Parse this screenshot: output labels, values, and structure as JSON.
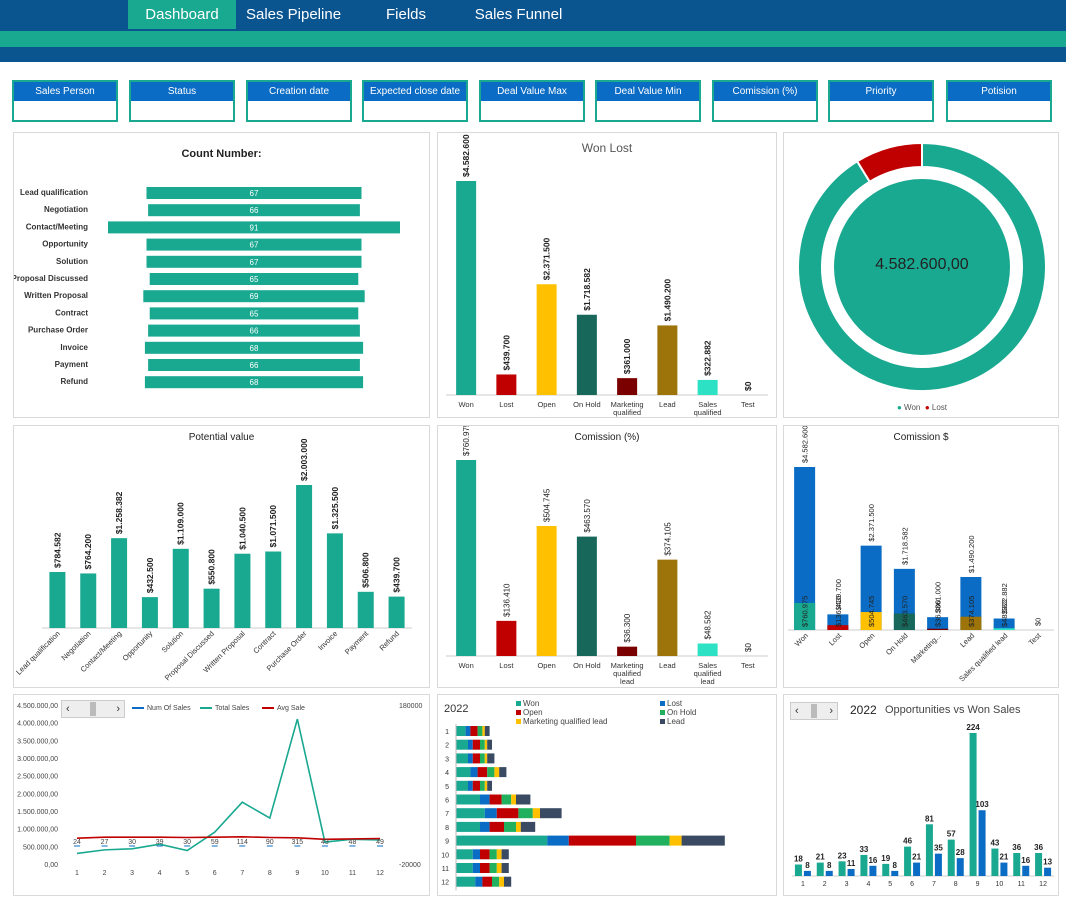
{
  "nav": {
    "items": [
      {
        "label": "Dashboard",
        "active": true
      },
      {
        "label": "Sales Pipeline",
        "active": false
      },
      {
        "label": "Fields",
        "active": false
      },
      {
        "label": "Sales Funnel",
        "active": false
      }
    ]
  },
  "filters": [
    "Sales Person",
    "Status",
    "Creation date",
    "Expected close date",
    "Deal Value Max",
    "Deal Value Min",
    "Comission (%)",
    "Priority",
    "Potision"
  ],
  "colors": {
    "navy": "#0a5490",
    "teal": "#19a890",
    "blue": "#0a6cc4",
    "red": "#c00000",
    "yellow": "#ffc000",
    "darkgreen": "#17675a",
    "maroon": "#7a0000",
    "olive": "#9c7409",
    "aqua": "#2de2c4",
    "green": "#21b05e",
    "slate": "#3a4a63"
  },
  "count_chart": {
    "title": "Count Number:",
    "chart_data": {
      "type": "bar",
      "categories": [
        "Lead qualification",
        "Negotiation",
        "Contact/Meeting",
        "Opportunity",
        "Solution",
        "Proposal Discussed",
        "Written Proposal",
        "Contract",
        "Purchase Order",
        "Invoice",
        "Payment",
        "Refund"
      ],
      "values": [
        67,
        66,
        91,
        67,
        67,
        65,
        69,
        65,
        66,
        68,
        66,
        68
      ]
    }
  },
  "won_lost_chart": {
    "title": "Won Lost",
    "chart_data": {
      "type": "bar",
      "categories": [
        "Won",
        "Lost",
        "Open",
        "On Hold",
        "Marketing qualified lead",
        "Lead",
        "Sales qualified lead",
        "Test"
      ],
      "values": [
        4582600,
        439700,
        2371500,
        1718582,
        361000,
        1490200,
        322882,
        0
      ],
      "labels": [
        "$4.582.600",
        "$439.700",
        "$2.371.500",
        "$1.718.582",
        "$361.000",
        "$1.490.200",
        "$322.882",
        "$0"
      ],
      "colors": [
        "#19a890",
        "#c00000",
        "#ffc000",
        "#17675a",
        "#7a0000",
        "#9c7409",
        "#2de2c4",
        "#19a890"
      ]
    }
  },
  "donut_chart": {
    "center_label": "4.582.600,00",
    "chart_data": {
      "type": "pie",
      "categories": [
        "Won",
        "Lost"
      ],
      "values": [
        4582600,
        439700
      ],
      "colors": [
        "#19a890",
        "#c00000"
      ]
    },
    "legend": [
      "Won",
      "Lost"
    ]
  },
  "potential_chart": {
    "title": "Potential value",
    "chart_data": {
      "type": "bar",
      "categories": [
        "Lead qualification",
        "Negotiation",
        "Contact/Meeting",
        "Opportunity",
        "Solution",
        "Proposal Discussed",
        "Written Proposal",
        "Contract",
        "Purchase Order",
        "Invoice",
        "Payment",
        "Refund"
      ],
      "values": [
        784582,
        764200,
        1258382,
        432500,
        1109000,
        550800,
        1040500,
        1071500,
        2003000,
        1325500,
        506800,
        439700
      ],
      "labels": [
        "$784.582",
        "$764.200",
        "$1.258.382",
        "$432.500",
        "$1.109.000",
        "$550.800",
        "$1.040.500",
        "$1.071.500",
        "$2.003.000",
        "$1.325.500",
        "$506.800",
        "$439.700"
      ]
    }
  },
  "comission_pct_chart": {
    "title": "Comission (%)",
    "chart_data": {
      "type": "bar",
      "categories": [
        "Won",
        "Lost",
        "Open",
        "On Hold",
        "Marketing qualified lead",
        "Lead",
        "Sales qualified lead",
        "Test"
      ],
      "values": [
        760975,
        136410,
        504745,
        463570,
        36300,
        374105,
        48582,
        0
      ],
      "labels": [
        "$760.975",
        "$136.410",
        "$504.745",
        "$463.570",
        "$36.300",
        "$374.105",
        "$48.582",
        "$0"
      ],
      "colors": [
        "#19a890",
        "#c00000",
        "#ffc000",
        "#17675a",
        "#7a0000",
        "#9c7409",
        "#2de2c4",
        "#19a890"
      ]
    }
  },
  "comission_usd_chart": {
    "title": "Comission $",
    "chart_data": {
      "type": "bar",
      "categories": [
        "Won",
        "Lost",
        "Open",
        "On Hold",
        "Marketing...",
        "Lead",
        "Sales qualified lead",
        "Test"
      ],
      "series": [
        {
          "values": [
            4582600,
            439700,
            2371500,
            1718582,
            361000,
            1490200,
            322882,
            0
          ],
          "labels": [
            "$4.582.600",
            "$439.700",
            "$2.371.500",
            "$1.718.582",
            "$361.000",
            "$1.490.200",
            "$322.882",
            "$0"
          ]
        },
        {
          "values": [
            760975,
            136410,
            504745,
            463570,
            36300,
            374105,
            48582,
            0
          ],
          "labels": [
            "$760.975",
            "$136.410",
            "$504.745",
            "$463.570",
            "$36.300",
            "$374.105",
            "$48.582",
            ""
          ]
        }
      ],
      "top_colors": [
        "#0a6cc4",
        "#0a6cc4",
        "#0a6cc4",
        "#0a6cc4",
        "#0a6cc4",
        "#0a6cc4",
        "#0a6cc4",
        "#0a6cc4"
      ],
      "bottom_colors": [
        "#19a890",
        "#c00000",
        "#ffc000",
        "#17675a",
        "#7a0000",
        "#9c7409",
        "#2de2c4",
        "#19a890"
      ]
    }
  },
  "line_chart": {
    "legend": [
      "Num Of Sales",
      "Total Sales",
      "Avg Sale"
    ],
    "y_ticks": [
      "4.500.000,00",
      "4.000.000,00",
      "3.500.000,00",
      "3.000.000,00",
      "2.500.000,00",
      "2.000.000,00",
      "1.500.000,00",
      "1.000.000,00",
      "500.000,00",
      "0,00"
    ],
    "y2_ticks": [
      "180000",
      "-20000"
    ],
    "chart_data": {
      "type": "line",
      "x": [
        1,
        2,
        3,
        4,
        5,
        6,
        7,
        8,
        9,
        10,
        11,
        12
      ],
      "ylim": [
        0,
        4500000
      ],
      "series": [
        {
          "name": "Num Of Sales",
          "values": [
            24,
            27,
            30,
            39,
            30,
            59,
            114,
            90,
            315,
            43,
            48,
            49
          ]
        },
        {
          "name": "Total Sales",
          "values": [
            300000,
            400000,
            430000,
            560000,
            380000,
            900000,
            1750000,
            1300000,
            4100000,
            620000,
            700000,
            680000
          ]
        },
        {
          "name": "Avg Sale",
          "values": [
            730000,
            760000,
            760000,
            760000,
            750000,
            760000,
            770000,
            750000,
            740000,
            700000,
            710000,
            720000
          ]
        }
      ]
    }
  },
  "stacked_chart": {
    "year": "2022",
    "legend": [
      "Won",
      "Lost",
      "Open",
      "On Hold",
      "Marketing qualified lead",
      "Lead"
    ],
    "legend_colors": [
      "#19a890",
      "#0a6cc4",
      "#c00000",
      "#21b05e",
      "#ffc000",
      "#3a4a63"
    ],
    "chart_data": {
      "type": "bar",
      "categories": [
        "1",
        "2",
        "3",
        "4",
        "5",
        "6",
        "7",
        "8",
        "9",
        "10",
        "11",
        "12"
      ],
      "series": [
        {
          "name": "Won",
          "values": [
            4,
            5,
            5,
            6,
            5,
            10,
            12,
            10,
            38,
            7,
            7,
            8
          ]
        },
        {
          "name": "Lost",
          "values": [
            2,
            2,
            2,
            3,
            2,
            4,
            5,
            4,
            9,
            3,
            3,
            3
          ]
        },
        {
          "name": "Open",
          "values": [
            3,
            3,
            3,
            4,
            3,
            5,
            9,
            6,
            28,
            4,
            4,
            4
          ]
        },
        {
          "name": "On Hold",
          "values": [
            2,
            2,
            2,
            3,
            2,
            4,
            6,
            5,
            14,
            3,
            3,
            3
          ]
        },
        {
          "name": "Marketing qualified lead",
          "values": [
            1,
            1,
            1,
            2,
            1,
            2,
            3,
            2,
            5,
            2,
            2,
            2
          ]
        },
        {
          "name": "Lead",
          "values": [
            2,
            2,
            3,
            3,
            2,
            6,
            9,
            6,
            18,
            3,
            3,
            3
          ]
        }
      ]
    }
  },
  "opp_chart": {
    "year": "2022",
    "title": "Opportunities vs Won Sales",
    "chart_data": {
      "type": "bar",
      "categories": [
        "1",
        "2",
        "3",
        "4",
        "5",
        "6",
        "7",
        "8",
        "9",
        "10",
        "11",
        "12"
      ],
      "series": [
        {
          "values": [
            18,
            21,
            23,
            33,
            19,
            46,
            81,
            57,
            224,
            43,
            36,
            36
          ]
        },
        {
          "values": [
            8,
            8,
            11,
            16,
            8,
            21,
            35,
            28,
            103,
            21,
            16,
            13
          ]
        }
      ]
    }
  }
}
